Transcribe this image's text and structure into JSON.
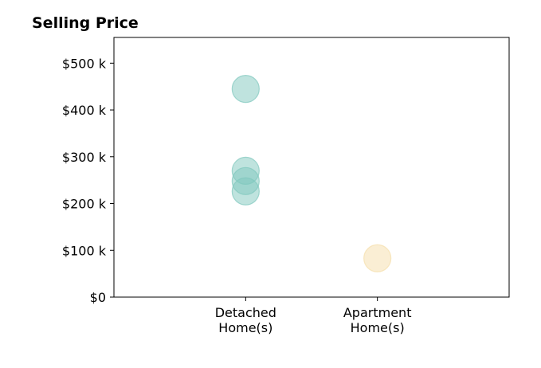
{
  "chart_data": {
    "type": "scatter",
    "title": "Selling Price",
    "xlabel": "",
    "ylabel": "",
    "categories": [
      {
        "lines": [
          "Detached",
          "Home(s)"
        ]
      },
      {
        "lines": [
          "Apartment",
          "Home(s)"
        ]
      }
    ],
    "series": [
      {
        "category_index": 0,
        "color": "#7fc7bd",
        "values": [
          445000,
          270000,
          248000,
          226000
        ]
      },
      {
        "category_index": 1,
        "color": "#f5deaa",
        "values": [
          83000
        ]
      }
    ],
    "yticks": [
      {
        "value": 0,
        "label": "$0"
      },
      {
        "value": 100000,
        "label": "$100 k"
      },
      {
        "value": 200000,
        "label": "$200 k"
      },
      {
        "value": 300000,
        "label": "$300 k"
      },
      {
        "value": 400000,
        "label": "$400 k"
      },
      {
        "value": 500000,
        "label": "$500 k"
      }
    ],
    "ylim": [
      0,
      555000
    ],
    "xlim": [
      0,
      3
    ],
    "grid": false,
    "legend": "none"
  }
}
